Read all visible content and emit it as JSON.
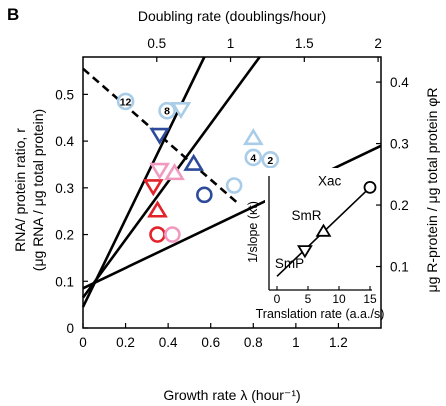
{
  "panel_label": "B",
  "colors": {
    "dark_blue": "#2e4a9a",
    "light_blue": "#a9cde8",
    "red": "#e3222a",
    "pink": "#f19ac0",
    "black": "#000000"
  },
  "chart_data": [
    {
      "id": "main",
      "type": "scatter",
      "xlabel": "Growth rate λ (hour⁻¹)",
      "x2label": "Doubling rate (doublings/hour)",
      "ylabel_line1": "RNA/ protein ratio, r",
      "ylabel_line2": "(μg RNA / μg total protein)",
      "y2label": "μg R-protein / μg total protein φR",
      "xlim": [
        0,
        1.4
      ],
      "ylim": [
        0,
        0.58
      ],
      "x_ticks": [
        {
          "v": 0,
          "label": "0"
        },
        {
          "v": 0.2,
          "label": "0.2"
        },
        {
          "v": 0.4,
          "label": "0.4"
        },
        {
          "v": 0.6,
          "label": "0.6"
        },
        {
          "v": 0.8,
          "label": "0.8"
        },
        {
          "v": 1.0,
          "label": "1"
        },
        {
          "v": 1.2,
          "label": "1.2"
        }
      ],
      "y_ticks": [
        {
          "v": 0,
          "label": "0"
        },
        {
          "v": 0.1,
          "label": "0.1"
        },
        {
          "v": 0.2,
          "label": "0.2"
        },
        {
          "v": 0.3,
          "label": "0.3"
        },
        {
          "v": 0.4,
          "label": "0.4"
        },
        {
          "v": 0.5,
          "label": "0.5"
        }
      ],
      "x2_ticks": [
        {
          "v": 0.5,
          "label": "0.5"
        },
        {
          "v": 1.0,
          "label": "1"
        },
        {
          "v": 1.5,
          "label": "1.5"
        },
        {
          "v": 2.0,
          "label": "2"
        }
      ],
      "y2_ticks": [
        {
          "v": 0.1,
          "label": "0.1"
        },
        {
          "v": 0.2,
          "label": "0.2"
        },
        {
          "v": 0.3,
          "label": "0.3"
        },
        {
          "v": 0.4,
          "label": "0.4"
        }
      ],
      "lines": [
        {
          "style": "solid",
          "x1": 0,
          "y1": 0.045,
          "x2": 0.57,
          "y2": 0.58
        },
        {
          "style": "solid",
          "x1": 0,
          "y1": 0.065,
          "x2": 0.83,
          "y2": 0.58
        },
        {
          "style": "solid",
          "x1": 0,
          "y1": 0.085,
          "x2": 1.4,
          "y2": 0.39
        },
        {
          "style": "dashed",
          "x1": 0,
          "y1": 0.555,
          "x2": 0.72,
          "y2": 0.27
        }
      ],
      "points": [
        {
          "shape": "circle",
          "color": "red",
          "x": 0.35,
          "y": 0.2
        },
        {
          "shape": "circle",
          "color": "pink",
          "x": 0.42,
          "y": 0.2
        },
        {
          "shape": "circle",
          "color": "dark_blue",
          "x": 0.57,
          "y": 0.285
        },
        {
          "shape": "circle",
          "color": "light_blue",
          "x": 0.71,
          "y": 0.305
        },
        {
          "shape": "circle",
          "color": "light_blue",
          "x": 0.2,
          "y": 0.485,
          "tag": "12"
        },
        {
          "shape": "circle",
          "color": "light_blue",
          "x": 0.395,
          "y": 0.465,
          "tag": "8"
        },
        {
          "shape": "circle",
          "color": "light_blue",
          "x": 0.8,
          "y": 0.365,
          "tag": "4"
        },
        {
          "shape": "circle",
          "color": "light_blue",
          "x": 0.88,
          "y": 0.36,
          "tag": "2"
        },
        {
          "shape": "triangle-up",
          "color": "red",
          "x": 0.35,
          "y": 0.25
        },
        {
          "shape": "triangle-up",
          "color": "pink",
          "x": 0.43,
          "y": 0.33
        },
        {
          "shape": "triangle-up",
          "color": "dark_blue",
          "x": 0.52,
          "y": 0.35
        },
        {
          "shape": "triangle-up",
          "color": "light_blue",
          "x": 0.8,
          "y": 0.405
        },
        {
          "shape": "triangle-down",
          "color": "red",
          "x": 0.33,
          "y": 0.305
        },
        {
          "shape": "triangle-down",
          "color": "pink",
          "x": 0.36,
          "y": 0.34
        },
        {
          "shape": "triangle-down",
          "color": "dark_blue",
          "x": 0.36,
          "y": 0.415
        },
        {
          "shape": "triangle-down",
          "color": "light_blue",
          "x": 0.46,
          "y": 0.47
        }
      ]
    },
    {
      "id": "inset",
      "type": "line",
      "xlabel": "Translation rate (a.a./s)",
      "ylabel": "1/slope (κt)",
      "xlim": [
        0,
        16
      ],
      "ylim": [
        0,
        1
      ],
      "x_ticks": [
        {
          "v": 0,
          "label": "0"
        },
        {
          "v": 5,
          "label": "5"
        },
        {
          "v": 10,
          "label": "10"
        },
        {
          "v": 15,
          "label": "15"
        }
      ],
      "line": {
        "x1": 0,
        "y1": 0.12,
        "x2": 15,
        "y2": 0.9
      },
      "points": [
        {
          "shape": "triangle-down",
          "x": 4.5,
          "y": 0.35,
          "label": "SmP"
        },
        {
          "shape": "triangle-up",
          "x": 7.5,
          "y": 0.51,
          "label": "SmR"
        },
        {
          "shape": "circle",
          "x": 15,
          "y": 0.9,
          "label": "Xac"
        }
      ]
    }
  ]
}
